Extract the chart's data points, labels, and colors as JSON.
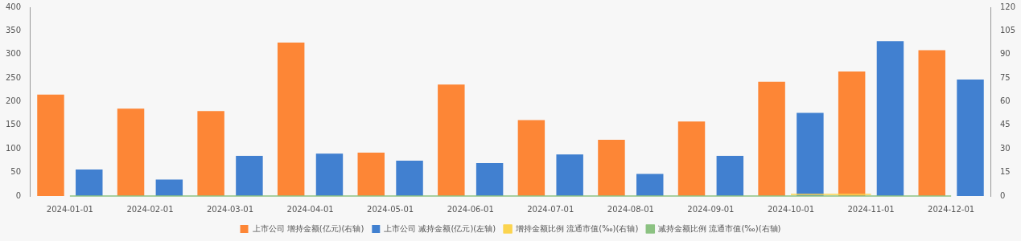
{
  "chart_data": {
    "type": "bar",
    "categories": [
      "2024-01-01",
      "2024-02-01",
      "2024-03-01",
      "2024-04-01",
      "2024-05-01",
      "2024-06-01",
      "2024-07-01",
      "2024-08-01",
      "2024-09-01",
      "2024-10-01",
      "2024-11-01",
      "2024-12-01"
    ],
    "series": [
      {
        "name": "上市公司 增持金额(亿元)(右轴)",
        "color": "#fd8636",
        "axis": "y2",
        "values": [
          64.5,
          55.5,
          54,
          97.5,
          27.6,
          70.8,
          48.3,
          35.7,
          47.4,
          72.6,
          79.2,
          92.7
        ]
      },
      {
        "name": "上市公司 减持金额(亿元)(左轴)",
        "color": "#4180d0",
        "axis": "y",
        "values": [
          56,
          35,
          85,
          90,
          75,
          70,
          88,
          47,
          85,
          176,
          328,
          247
        ]
      },
      {
        "name": "增持金额比例 流通市值(‰)(右轴)",
        "type": "line",
        "color": "#fbd44f",
        "axis": "y2",
        "values": [
          null,
          null,
          null,
          null,
          null,
          null,
          null,
          null,
          null,
          1,
          1,
          null
        ]
      },
      {
        "name": "减持金额比例 流通市值(‰)(右轴)",
        "type": "line",
        "color": "#8cc282",
        "axis": "y2",
        "values": [
          0,
          0,
          0,
          0,
          0,
          0,
          0,
          0,
          0,
          0,
          0,
          0
        ]
      }
    ],
    "ylim": [
      0,
      400
    ],
    "yticks": [
      0,
      50,
      100,
      150,
      200,
      250,
      300,
      350,
      400
    ],
    "y2lim": [
      0,
      120
    ],
    "y2ticks": [
      0,
      15,
      30,
      45,
      60,
      75,
      90,
      105,
      120
    ],
    "grid": false,
    "legend": "bottom",
    "line_style": "solid"
  }
}
